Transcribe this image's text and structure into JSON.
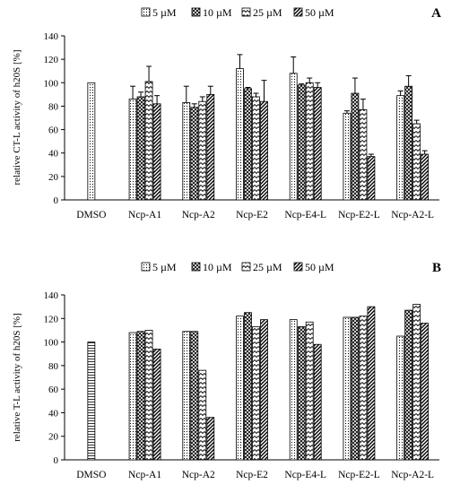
{
  "chart_data": [
    {
      "type": "bar",
      "panel_label": "A",
      "ylabel": "relative CT-L activity of h20S [%]",
      "ylim": [
        0,
        140
      ],
      "yticks": [
        0,
        20,
        40,
        60,
        80,
        100,
        120,
        140
      ],
      "categories": [
        "DMSO",
        "Ncp-A1",
        "Ncp-A2",
        "Ncp-E2",
        "Ncp-E4-L",
        "Ncp-E2-L",
        "Ncp-A2-L"
      ],
      "legend_position": "top",
      "series": [
        {
          "name": "5 µM",
          "pattern": "dots",
          "values": [
            100,
            86,
            83,
            112,
            108,
            74,
            89
          ],
          "errors": [
            0,
            11,
            14,
            12,
            14,
            2,
            4
          ]
        },
        {
          "name": "10 µM",
          "pattern": "crosshatch",
          "values": [
            null,
            88,
            79,
            95,
            98,
            91,
            97
          ],
          "errors": [
            0,
            4,
            3,
            1,
            1,
            13,
            9
          ]
        },
        {
          "name": "25 µM",
          "pattern": "zigzag",
          "values": [
            null,
            101,
            84,
            88,
            100,
            77,
            65
          ],
          "errors": [
            0,
            13,
            4,
            3,
            4,
            9,
            3
          ]
        },
        {
          "name": "50 µM",
          "pattern": "diagonal",
          "values": [
            null,
            82,
            90,
            84,
            96,
            37,
            39
          ],
          "errors": [
            0,
            7,
            7,
            18,
            4,
            2,
            3
          ]
        }
      ]
    },
    {
      "type": "bar",
      "panel_label": "B",
      "ylabel": "relative T-L activity of h20S [%]",
      "ylim": [
        0,
        140
      ],
      "yticks": [
        0,
        20,
        40,
        60,
        80,
        100,
        120,
        140
      ],
      "categories": [
        "DMSO",
        "Ncp-A1",
        "Ncp-A2",
        "Ncp-E2",
        "Ncp-E4-L",
        "Ncp-E2-L",
        "Ncp-A2-L"
      ],
      "legend_position": "top",
      "series": [
        {
          "name": "5 µM",
          "pattern": "dots",
          "values": [
            100,
            108,
            109,
            122,
            119,
            121,
            105
          ]
        },
        {
          "name": "10 µM",
          "pattern": "crosshatch",
          "values": [
            null,
            109,
            109,
            125,
            113,
            121,
            127
          ]
        },
        {
          "name": "25 µM",
          "pattern": "zigzag",
          "values": [
            null,
            110,
            76,
            113,
            117,
            122,
            132
          ]
        },
        {
          "name": "50 µM",
          "pattern": "diagonal",
          "values": [
            null,
            94,
            36,
            119,
            98,
            130,
            116
          ]
        }
      ]
    }
  ]
}
